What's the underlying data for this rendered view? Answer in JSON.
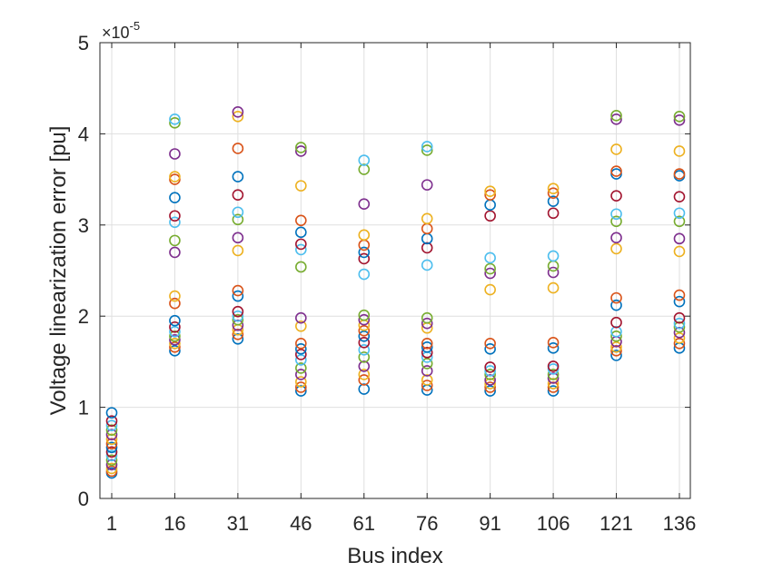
{
  "chart_data": {
    "type": "scatter",
    "title": "",
    "xlabel": "Bus index",
    "ylabel": "Voltage linearization error [pu]",
    "exponent_label": "×10",
    "exponent_power": "-5",
    "categories": [
      "1",
      "16",
      "31",
      "46",
      "61",
      "76",
      "91",
      "106",
      "121",
      "136"
    ],
    "ylim": [
      0,
      5
    ],
    "yticks": [
      "0",
      "1",
      "2",
      "3",
      "4",
      "5"
    ],
    "y_scale_factor": "1e-5",
    "grid": true,
    "legend": "none",
    "series_colors": [
      "#0072BD",
      "#D95319",
      "#EDB120",
      "#7E2F8E",
      "#77AC30",
      "#4DBEEE",
      "#A2142F"
    ],
    "points": [
      [
        0.28,
        0.3,
        0.33,
        0.37,
        0.42,
        0.47,
        0.51,
        0.56,
        0.6,
        0.65,
        0.7,
        0.75,
        0.8,
        0.85,
        0.94
      ],
      [
        1.62,
        1.66,
        1.7,
        1.74,
        1.78,
        1.83,
        1.88,
        1.95,
        2.14,
        2.22,
        2.7,
        2.83,
        3.03,
        3.1,
        3.3,
        3.5,
        3.53,
        3.78,
        4.12,
        4.16
      ],
      [
        1.75,
        1.8,
        1.85,
        1.9,
        1.96,
        2.0,
        2.05,
        2.22,
        2.28,
        2.72,
        2.86,
        3.06,
        3.14,
        3.33,
        3.53,
        3.84,
        4.19,
        4.24
      ],
      [
        1.18,
        1.22,
        1.28,
        1.36,
        1.43,
        1.52,
        1.58,
        1.64,
        1.7,
        1.89,
        1.98,
        2.54,
        2.73,
        2.79,
        2.92,
        3.05,
        3.43,
        3.81,
        3.85
      ],
      [
        1.2,
        1.3,
        1.36,
        1.45,
        1.55,
        1.63,
        1.71,
        1.78,
        1.84,
        1.9,
        1.96,
        2.01,
        2.46,
        2.63,
        2.7,
        2.78,
        2.89,
        3.23,
        3.61,
        3.71
      ],
      [
        1.19,
        1.24,
        1.3,
        1.4,
        1.48,
        1.55,
        1.6,
        1.66,
        1.7,
        1.87,
        1.92,
        1.98,
        2.56,
        2.75,
        2.85,
        2.96,
        3.07,
        3.44,
        3.82,
        3.86
      ],
      [
        1.18,
        1.22,
        1.26,
        1.3,
        1.36,
        1.4,
        1.44,
        1.64,
        1.7,
        2.29,
        2.47,
        2.52,
        2.64,
        3.1,
        3.22,
        3.33,
        3.37
      ],
      [
        1.18,
        1.22,
        1.26,
        1.32,
        1.36,
        1.42,
        1.45,
        1.65,
        1.71,
        2.31,
        2.48,
        2.55,
        2.66,
        3.13,
        3.26,
        3.35,
        3.4
      ],
      [
        1.57,
        1.62,
        1.66,
        1.72,
        1.78,
        1.83,
        1.93,
        2.12,
        2.2,
        2.74,
        2.86,
        3.04,
        3.12,
        3.32,
        3.56,
        3.59,
        3.83,
        4.16,
        4.2
      ],
      [
        1.65,
        1.7,
        1.76,
        1.82,
        1.88,
        1.92,
        1.98,
        2.16,
        2.23,
        2.71,
        2.85,
        3.04,
        3.13,
        3.31,
        3.54,
        3.56,
        3.81,
        4.15,
        4.19
      ]
    ]
  }
}
